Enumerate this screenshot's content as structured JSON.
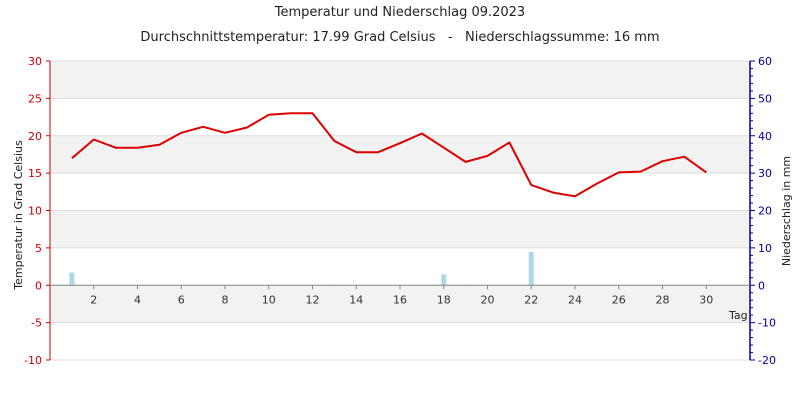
{
  "chart_data": {
    "type": "line",
    "title": "Temperatur und Niederschlag 09.2023",
    "subtitle": "Durchschnittstemperatur: 17.99 Grad Celsius   -   Niederschlagssumme: 16 mm",
    "xlabel": "Tag",
    "ylabel_left": "Temperatur in Grad Celsius",
    "ylabel_right": "Niederschlag in mm",
    "xlim": [
      0,
      32
    ],
    "ylim_left": [
      -10,
      30
    ],
    "ylim_right": [
      -20,
      60
    ],
    "xticks": [
      2,
      4,
      6,
      8,
      10,
      12,
      14,
      16,
      18,
      20,
      22,
      24,
      26,
      28,
      30
    ],
    "yticks_left": [
      -10,
      -5,
      0,
      5,
      10,
      15,
      20,
      25,
      30
    ],
    "yticks_right": [
      -20,
      -10,
      0,
      10,
      20,
      30,
      40,
      50,
      60
    ],
    "grid": true,
    "colors": {
      "temperature": "#dd0000",
      "precipitation": "#add8e6",
      "left_axis": "#cc0000",
      "right_axis": "#000099"
    },
    "series": [
      {
        "axis": "left",
        "kind": "line",
        "x": [
          1,
          2,
          3,
          4,
          5,
          6,
          7,
          8,
          9,
          10,
          11,
          12,
          13,
          14,
          15,
          16,
          17,
          18,
          19,
          20,
          21,
          22,
          23,
          24,
          25,
          26,
          27,
          28,
          29,
          30
        ],
        "values": [
          17.0,
          19.5,
          18.4,
          18.4,
          18.8,
          20.4,
          21.2,
          20.4,
          21.1,
          22.8,
          23.0,
          23.0,
          19.3,
          17.8,
          17.8,
          19.0,
          20.3,
          18.4,
          16.5,
          17.3,
          19.1,
          13.4,
          12.4,
          11.9,
          13.6,
          15.1,
          15.2,
          16.6,
          17.2,
          15.1
        ]
      },
      {
        "axis": "right",
        "kind": "bar",
        "x": [
          1,
          2,
          3,
          4,
          5,
          6,
          7,
          8,
          9,
          10,
          11,
          12,
          13,
          14,
          15,
          16,
          17,
          18,
          19,
          20,
          21,
          22,
          23,
          24,
          25,
          26,
          27,
          28,
          29,
          30
        ],
        "values": [
          3.4,
          0,
          0,
          0,
          0,
          0,
          0,
          0,
          0,
          0,
          0,
          0,
          0.2,
          0,
          0,
          0,
          0,
          2.9,
          0.2,
          0,
          0,
          8.9,
          0,
          0,
          0,
          0,
          0,
          0,
          0,
          0
        ]
      }
    ]
  }
}
